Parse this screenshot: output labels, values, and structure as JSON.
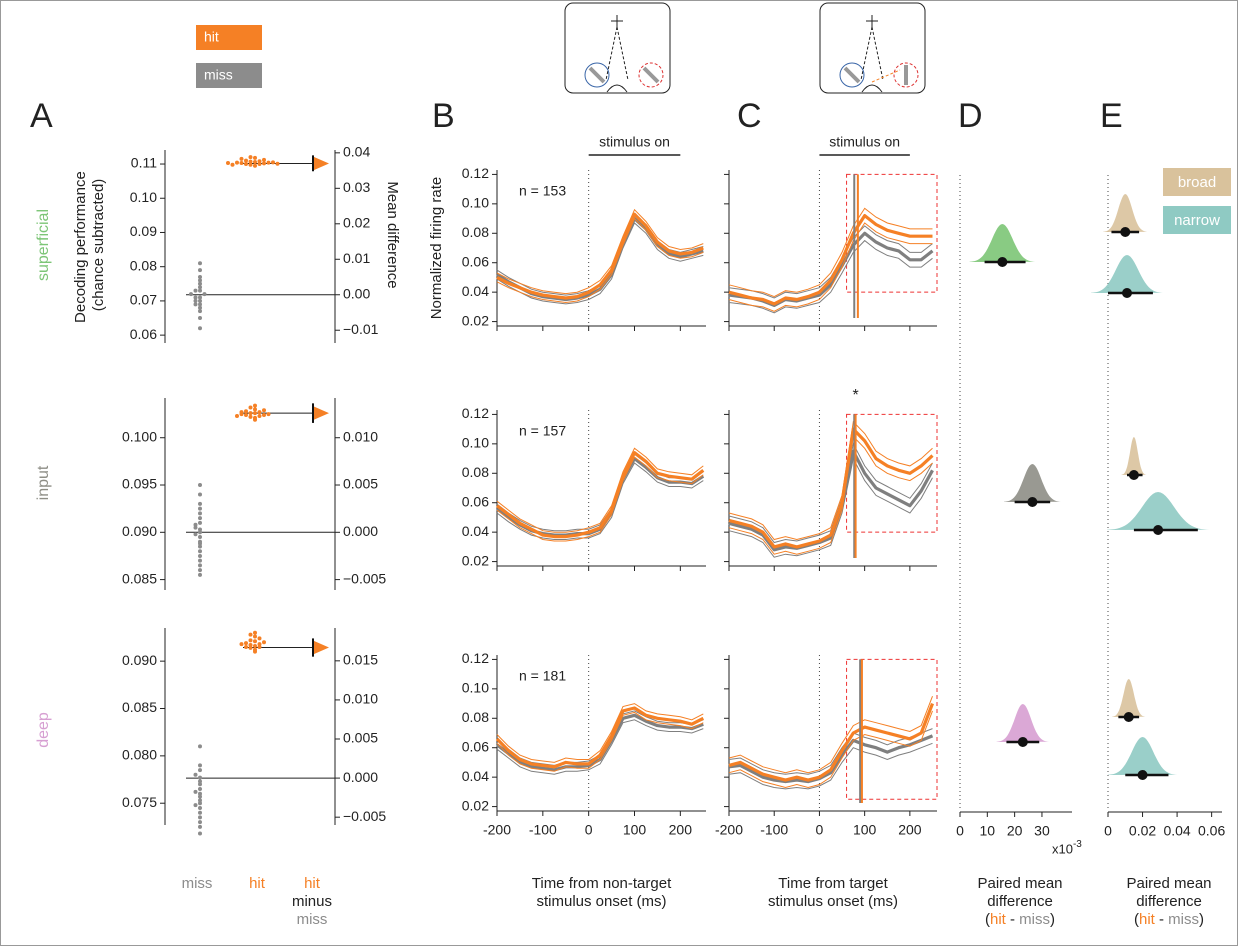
{
  "figure": {
    "panel_labels": [
      "A",
      "B",
      "C",
      "D",
      "E"
    ],
    "minus": "minus",
    "paired_parts": [
      "(",
      " - ",
      ")"
    ]
  },
  "chart_data": [
    {
      "type": "estimation",
      "ylabel": [
        "Decoding performance",
        "(chance subtracted)"
      ],
      "y2label": "Mean difference",
      "ylim": [
        0.0577,
        0.1141
      ],
      "yticks": [
        0.06,
        0.07,
        0.08,
        0.09,
        {
          "value": 0.1,
          "label": "0.10"
        },
        0.11
      ],
      "y2lim": [
        -0.0136,
        0.0408
      ],
      "y2ticks": [
        {
          "value": -0.01,
          "label": "−0.01"
        },
        {
          "value": 0,
          "label": "0.00"
        },
        0.01,
        0.02,
        0.03,
        0.04
      ],
      "series": [
        {
          "name": "miss",
          "color": "#8c8c8c",
          "values": [
            0.062,
            0.065,
            0.067,
            0.068,
            0.069,
            0.069,
            0.07,
            0.07,
            0.071,
            0.071,
            0.072,
            0.072,
            0.073,
            0.073,
            0.074,
            0.075,
            0.076,
            0.077,
            0.079,
            0.081
          ]
        },
        {
          "name": "hit",
          "color": "#f58025",
          "values": [
            0.1095,
            0.1098,
            0.11,
            0.11,
            0.1102,
            0.1103,
            0.1104,
            0.1104,
            0.1105,
            0.1106,
            0.1107,
            0.1108,
            0.111,
            0.1112,
            0.1115,
            0.1118,
            0.112,
            0.1098,
            0.1101,
            0.1103
          ]
        }
      ],
      "difference": {
        "value": 0.037,
        "ci": [
          0.0365,
          0.0376
        ]
      }
    },
    {
      "type": "estimation",
      "ylim": [
        0.0839,
        0.1042
      ],
      "yticks": [
        0.085,
        {
          "value": 0.09,
          "label": "0.090"
        },
        0.095,
        {
          "value": 0.1,
          "label": "0.100"
        }
      ],
      "y2lim": [
        -0.0061,
        0.0142
      ],
      "y2ticks": [
        {
          "value": -0.005,
          "label": "−0.005"
        },
        {
          "value": 0,
          "label": "0.000"
        },
        0.005,
        {
          "value": 0.01,
          "label": "0.010"
        }
      ],
      "series": [
        {
          "name": "miss",
          "color": "#8c8c8c",
          "values": [
            0.0855,
            0.086,
            0.0865,
            0.087,
            0.0875,
            0.088,
            0.0885,
            0.089,
            0.0895,
            0.0898,
            0.09,
            0.0903,
            0.0905,
            0.091,
            0.0915,
            0.092,
            0.0925,
            0.093,
            0.094,
            0.095,
            0.0888,
            0.0908
          ]
        },
        {
          "name": "hit",
          "color": "#f58025",
          "values": [
            0.1019,
            0.1021,
            0.1022,
            0.1023,
            0.1024,
            0.1024,
            0.1025,
            0.1025,
            0.1026,
            0.1026,
            0.1027,
            0.1028,
            0.1029,
            0.103,
            0.1032,
            0.1034,
            0.1023,
            0.1027
          ]
        }
      ],
      "difference": {
        "value": 0.0126,
        "ci": [
          0.0122,
          0.013
        ]
      }
    },
    {
      "type": "estimation",
      "ylim": [
        0.0727,
        0.0935
      ],
      "yticks": [
        0.075,
        {
          "value": 0.08,
          "label": "0.080"
        },
        0.085,
        {
          "value": 0.09,
          "label": "0.090"
        }
      ],
      "y2lim": [
        -0.006,
        0.0192
      ],
      "y2ticks": [
        {
          "value": -0.005,
          "label": "−0.005"
        },
        {
          "value": 0,
          "label": "0.000"
        },
        0.005,
        {
          "value": 0.01,
          "label": "0.010"
        },
        0.015
      ],
      "series": [
        {
          "name": "miss",
          "color": "#8c8c8c",
          "values": [
            0.0718,
            0.0725,
            0.073,
            0.0735,
            0.074,
            0.0745,
            0.075,
            0.0753,
            0.0757,
            0.076,
            0.0762,
            0.0765,
            0.077,
            0.0773,
            0.0777,
            0.078,
            0.0785,
            0.079,
            0.081,
            0.0748
          ]
        },
        {
          "name": "hit",
          "color": "#f58025",
          "values": [
            0.091,
            0.0912,
            0.0914,
            0.0915,
            0.0916,
            0.0917,
            0.0918,
            0.0919,
            0.092,
            0.0921,
            0.0922,
            0.0924,
            0.0926,
            0.0928,
            0.093,
            0.0915,
            0.0918
          ]
        }
      ],
      "difference": {
        "value": 0.0167,
        "ci": [
          0.0163,
          0.0171
        ]
      }
    },
    {
      "type": "line",
      "ylabel": "Normalized firing rate",
      "stimulus_label": "stimulus on",
      "annotation": "n = 153",
      "x": [
        -200,
        -175,
        -150,
        -125,
        -100,
        -75,
        -50,
        -25,
        0,
        25,
        50,
        75,
        100,
        125,
        150,
        175,
        200,
        225,
        250
      ],
      "xlim": [
        -200,
        256
      ],
      "xticks": [
        -200,
        -100,
        0,
        100,
        200
      ],
      "ylim": [
        0.017,
        0.123
      ],
      "yticks": [
        0.02,
        0.04,
        0.06,
        0.08,
        {
          "value": 0.1,
          "label": "0.10"
        },
        0.12
      ],
      "series": [
        {
          "color": "#7f7f7f",
          "error": 0.003,
          "values": [
            0.052,
            0.047,
            0.043,
            0.039,
            0.037,
            0.036,
            0.035,
            0.036,
            0.038,
            0.042,
            0.052,
            0.073,
            0.09,
            0.083,
            0.072,
            0.066,
            0.064,
            0.066,
            0.068
          ]
        },
        {
          "color": "#f58025",
          "error": 0.003,
          "values": [
            0.05,
            0.046,
            0.043,
            0.04,
            0.038,
            0.037,
            0.036,
            0.037,
            0.04,
            0.045,
            0.055,
            0.075,
            0.093,
            0.085,
            0.074,
            0.068,
            0.066,
            0.067,
            0.07
          ]
        }
      ]
    },
    {
      "type": "line",
      "annotation": "n = 157",
      "x": [
        -200,
        -175,
        -150,
        -125,
        -100,
        -75,
        -50,
        -25,
        0,
        25,
        50,
        75,
        100,
        125,
        150,
        175,
        200,
        225,
        250
      ],
      "xlim": [
        -200,
        256
      ],
      "xticks": [
        -200,
        -100,
        0,
        100,
        200
      ],
      "ylim": [
        0.017,
        0.123
      ],
      "yticks": [
        0.02,
        0.04,
        0.06,
        0.08,
        {
          "value": 0.1,
          "label": "0.10"
        },
        0.12
      ],
      "series": [
        {
          "color": "#7f7f7f",
          "error": 0.003,
          "values": [
            0.056,
            0.05,
            0.045,
            0.041,
            0.039,
            0.038,
            0.038,
            0.039,
            0.039,
            0.042,
            0.053,
            0.076,
            0.09,
            0.084,
            0.077,
            0.074,
            0.074,
            0.073,
            0.078
          ]
        },
        {
          "color": "#f58025",
          "error": 0.003,
          "values": [
            0.058,
            0.052,
            0.046,
            0.042,
            0.038,
            0.037,
            0.037,
            0.038,
            0.04,
            0.043,
            0.055,
            0.078,
            0.094,
            0.088,
            0.08,
            0.078,
            0.077,
            0.076,
            0.082
          ]
        }
      ]
    },
    {
      "type": "line",
      "annotation": "n = 181",
      "xlabel": [
        "Time from non-target",
        "stimulus onset (ms)"
      ],
      "x": [
        -200,
        -175,
        -150,
        -125,
        -100,
        -75,
        -50,
        -25,
        0,
        25,
        50,
        75,
        100,
        125,
        150,
        175,
        200,
        225,
        250
      ],
      "xlim": [
        -200,
        256
      ],
      "xticks": [
        -200,
        -100,
        0,
        100,
        200
      ],
      "ylim": [
        0.017,
        0.123
      ],
      "yticks": [
        0.02,
        0.04,
        0.06,
        0.08,
        {
          "value": 0.1,
          "label": "0.10"
        },
        0.12
      ],
      "series": [
        {
          "color": "#7f7f7f",
          "error": 0.003,
          "values": [
            0.062,
            0.056,
            0.05,
            0.047,
            0.046,
            0.045,
            0.047,
            0.047,
            0.048,
            0.052,
            0.065,
            0.08,
            0.082,
            0.078,
            0.075,
            0.074,
            0.074,
            0.073,
            0.076
          ]
        },
        {
          "color": "#f58025",
          "error": 0.003,
          "values": [
            0.066,
            0.058,
            0.052,
            0.049,
            0.048,
            0.047,
            0.05,
            0.049,
            0.049,
            0.055,
            0.068,
            0.085,
            0.087,
            0.082,
            0.08,
            0.079,
            0.078,
            0.076,
            0.08
          ]
        }
      ]
    },
    {
      "type": "line",
      "stimulus_label": "stimulus on",
      "window": {
        "x": [
          60,
          260
        ],
        "y": [
          0.04,
          0.12
        ]
      },
      "x": [
        -200,
        -175,
        -150,
        -125,
        -100,
        -75,
        -50,
        -25,
        0,
        25,
        50,
        75,
        100,
        125,
        150,
        175,
        200,
        225,
        250
      ],
      "xlim": [
        -200,
        260
      ],
      "xticks": [
        -200,
        -100,
        0,
        100,
        200
      ],
      "ylim": [
        0.017,
        0.123
      ],
      "yticks": [
        0.02,
        0.04,
        0.06,
        0.08,
        0.1,
        0.12
      ],
      "series": [
        {
          "color": "#7f7f7f",
          "error": 0.005,
          "latency": 77,
          "values": [
            0.038,
            0.037,
            0.036,
            0.034,
            0.031,
            0.035,
            0.034,
            0.036,
            0.038,
            0.045,
            0.058,
            0.072,
            0.08,
            0.074,
            0.07,
            0.068,
            0.062,
            0.062,
            0.068
          ]
        },
        {
          "color": "#f58025",
          "error": 0.005,
          "latency": 85,
          "values": [
            0.04,
            0.038,
            0.036,
            0.035,
            0.032,
            0.036,
            0.035,
            0.037,
            0.04,
            0.048,
            0.062,
            0.08,
            0.092,
            0.086,
            0.082,
            0.08,
            0.078,
            0.078,
            0.078
          ]
        }
      ]
    },
    {
      "type": "line",
      "star": "*",
      "window": {
        "x": [
          60,
          260
        ],
        "y": [
          0.04,
          0.12
        ]
      },
      "x": [
        -200,
        -175,
        -150,
        -125,
        -100,
        -75,
        -50,
        -25,
        0,
        25,
        50,
        75,
        100,
        125,
        150,
        175,
        200,
        225,
        250
      ],
      "xlim": [
        -200,
        260
      ],
      "xticks": [
        -200,
        -100,
        0,
        100,
        200
      ],
      "ylim": [
        0.017,
        0.123
      ],
      "yticks": [
        0.02,
        0.04,
        0.06,
        0.08,
        0.1,
        0.12
      ],
      "series": [
        {
          "color": "#7f7f7f",
          "error": 0.005,
          "latency": 77,
          "values": [
            0.046,
            0.044,
            0.042,
            0.038,
            0.028,
            0.03,
            0.029,
            0.031,
            0.033,
            0.036,
            0.058,
            0.095,
            0.08,
            0.07,
            0.066,
            0.062,
            0.058,
            0.068,
            0.082
          ]
        },
        {
          "color": "#f58025",
          "error": 0.005,
          "latency": 80,
          "values": [
            0.048,
            0.046,
            0.044,
            0.04,
            0.03,
            0.032,
            0.03,
            0.032,
            0.034,
            0.038,
            0.06,
            0.11,
            0.102,
            0.09,
            0.085,
            0.082,
            0.08,
            0.085,
            0.092
          ]
        }
      ]
    },
    {
      "type": "line",
      "xlabel": [
        "Time from target",
        "stimulus onset (ms)"
      ],
      "window": {
        "x": [
          60,
          260
        ],
        "y": [
          0.025,
          0.12
        ]
      },
      "x": [
        -200,
        -175,
        -150,
        -125,
        -100,
        -75,
        -50,
        -25,
        0,
        25,
        50,
        75,
        100,
        125,
        150,
        175,
        200,
        225,
        250
      ],
      "xlim": [
        -200,
        260
      ],
      "xticks": [
        -200,
        -100,
        0,
        100,
        200
      ],
      "ylim": [
        0.017,
        0.123
      ],
      "yticks": [
        0.02,
        0.04,
        0.06,
        0.08,
        0.1,
        0.12
      ],
      "series": [
        {
          "color": "#7f7f7f",
          "error": 0.005,
          "latency": 90,
          "values": [
            0.047,
            0.048,
            0.044,
            0.04,
            0.038,
            0.037,
            0.038,
            0.037,
            0.039,
            0.043,
            0.055,
            0.065,
            0.062,
            0.06,
            0.057,
            0.06,
            0.062,
            0.065,
            0.068
          ]
        },
        {
          "color": "#f58025",
          "error": 0.005,
          "latency": 94,
          "values": [
            0.048,
            0.05,
            0.046,
            0.042,
            0.04,
            0.038,
            0.04,
            0.038,
            0.04,
            0.045,
            0.058,
            0.07,
            0.074,
            0.072,
            0.07,
            0.068,
            0.066,
            0.07,
            0.09
          ]
        }
      ]
    },
    {
      "type": "distribution",
      "categories": [
        "superficial",
        "input",
        "deep"
      ],
      "colors": [
        "#7cc576",
        "#8e8e86",
        "#d79fd2"
      ],
      "values": [
        15.5,
        26.5,
        23
      ],
      "ci": [
        [
          9,
          24
        ],
        [
          20,
          33
        ],
        [
          17,
          29
        ]
      ],
      "xlim": [
        0,
        41
      ],
      "xticks": [
        0,
        10,
        20,
        30
      ],
      "xlabel": [
        "Paired mean",
        "difference"
      ],
      "xunit": "x10",
      "xunit_exponent": "-3"
    },
    {
      "type": "distribution",
      "xlim": [
        0,
        0.066
      ],
      "xticks": [
        0,
        0.02,
        0.04,
        0.06
      ],
      "xlabel": [
        "Paired mean",
        "difference"
      ],
      "series": [
        {
          "name": "broad",
          "color": "#d9c29c",
          "values": [
            0.01,
            0.015,
            0.012
          ],
          "ci": [
            [
              0.002,
              0.018
            ],
            [
              0.011,
              0.02
            ],
            [
              0.006,
              0.018
            ]
          ]
        },
        {
          "name": "narrow",
          "color": "#8fcac3",
          "values": [
            0.011,
            0.029,
            0.02
          ],
          "ci": [
            [
              0,
              0.026
            ],
            [
              0.015,
              0.052
            ],
            [
              0.01,
              0.035
            ]
          ]
        }
      ]
    }
  ]
}
